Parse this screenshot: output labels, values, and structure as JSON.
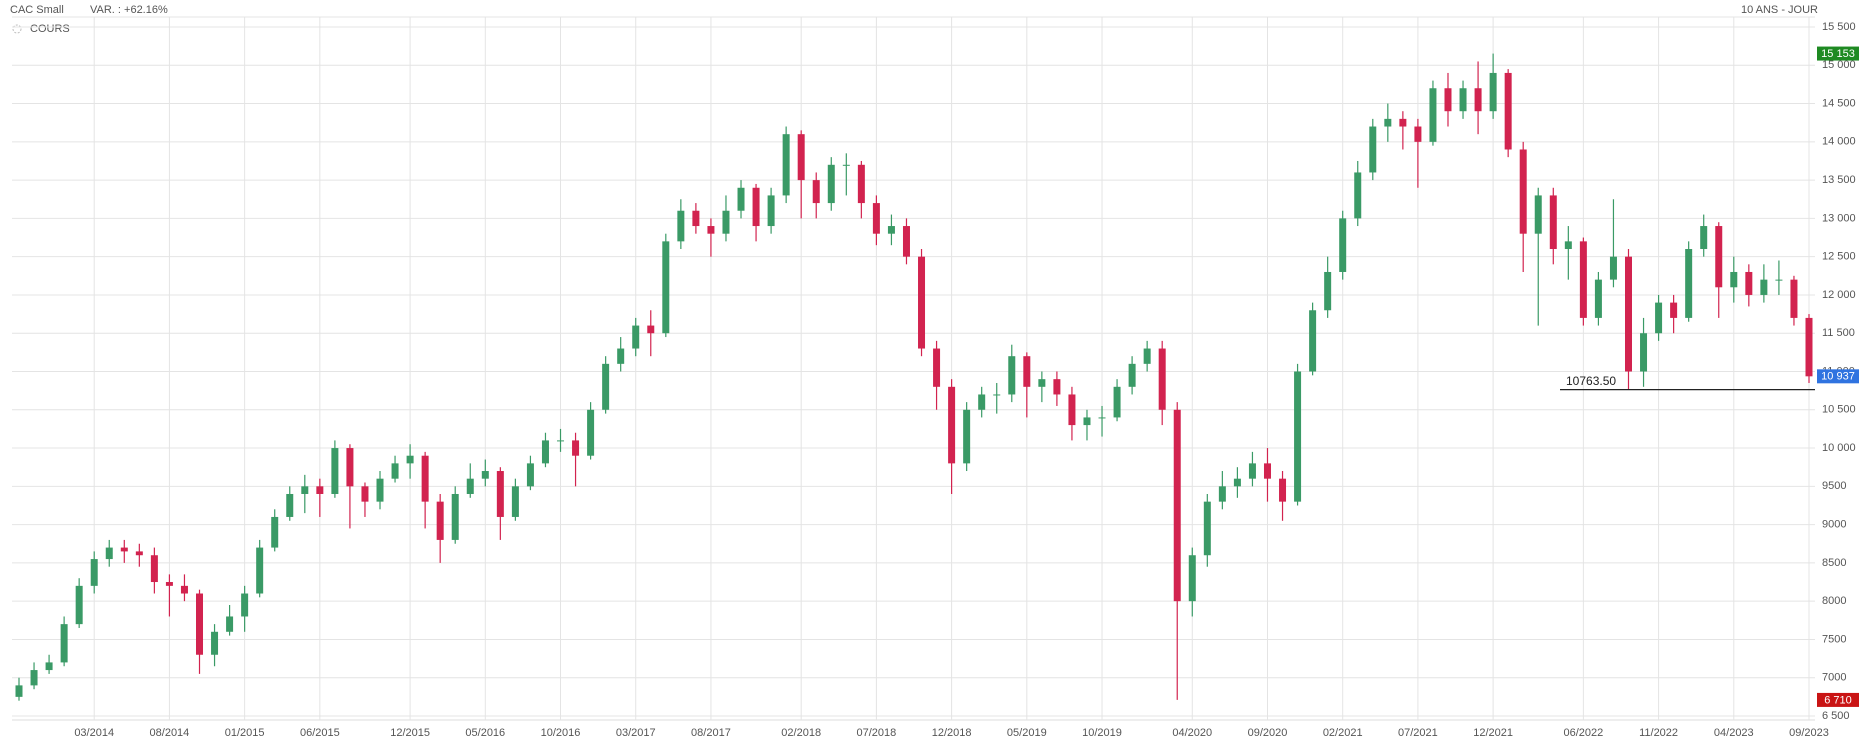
{
  "chart_data": {
    "type": "candlestick",
    "title": "CAC Small",
    "subtitle": "VAR. : +62.16%",
    "period": "10 ANS - JOUR",
    "legend": "COURS",
    "up_color": "#3a9a66",
    "down_color": "#d2234f",
    "grid": true,
    "ylim": [
      6500,
      15500
    ],
    "yticks": [
      {
        "value": 6500,
        "label": "6 500"
      },
      7000,
      7500,
      8000,
      8500,
      9000,
      9500,
      {
        "value": 10000,
        "label": "10 000"
      },
      {
        "value": 10500,
        "label": "10 500"
      },
      {
        "value": 11000,
        "label": "11 000"
      },
      {
        "value": 11500,
        "label": "11 500"
      },
      {
        "value": 12000,
        "label": "12 000"
      },
      {
        "value": 12500,
        "label": "12 500"
      },
      {
        "value": 13000,
        "label": "13 000"
      },
      {
        "value": 13500,
        "label": "13 500"
      },
      {
        "value": 14000,
        "label": "14 000"
      },
      {
        "value": 14500,
        "label": "14 500"
      },
      {
        "value": 15000,
        "label": "15 000"
      },
      {
        "value": 15500,
        "label": "15 500"
      }
    ],
    "yticks_fix": null,
    "categories": [
      null,
      null,
      null,
      null,
      null,
      "03/2014",
      null,
      null,
      null,
      null,
      "08/2014",
      null,
      null,
      null,
      null,
      "01/2015",
      null,
      null,
      null,
      null,
      "06/2015",
      null,
      null,
      null,
      null,
      null,
      "12/2015",
      null,
      null,
      null,
      null,
      "05/2016",
      null,
      null,
      null,
      null,
      "10/2016",
      null,
      null,
      null,
      null,
      "03/2017",
      null,
      null,
      null,
      null,
      "08/2017",
      null,
      null,
      null,
      null,
      null,
      "02/2018",
      null,
      null,
      null,
      null,
      "07/2018",
      null,
      null,
      null,
      null,
      "12/2018",
      null,
      null,
      null,
      null,
      "05/2019",
      null,
      null,
      null,
      null,
      "10/2019",
      null,
      null,
      null,
      null,
      null,
      "04/2020",
      null,
      null,
      null,
      null,
      "09/2020",
      null,
      null,
      null,
      null,
      "02/2021",
      null,
      null,
      null,
      null,
      "07/2021",
      null,
      null,
      null,
      null,
      "12/2021",
      null,
      null,
      null,
      null,
      null,
      "06/2022",
      null,
      null,
      null,
      null,
      "11/2022",
      null,
      null,
      null,
      null,
      "04/2023",
      null,
      null,
      null,
      null,
      "09/2023"
    ],
    "open": [
      6750,
      6900,
      7100,
      7200,
      7700,
      8200,
      8550,
      8700,
      8650,
      8600,
      8250,
      8200,
      8100,
      7300,
      7600,
      7800,
      8100,
      8700,
      9100,
      9400,
      9500,
      9400,
      10000,
      9500,
      9300,
      9600,
      9800,
      9900,
      9300,
      8800,
      9400,
      9600,
      9700,
      9100,
      9500,
      9800,
      10100,
      10100,
      9900,
      10500,
      11100,
      11300,
      11600,
      11500,
      12700,
      13100,
      12900,
      12800,
      13100,
      13400,
      12900,
      13300,
      14100,
      13500,
      13200,
      13700,
      13700,
      13200,
      12800,
      12900,
      12500,
      11300,
      10800,
      9800,
      10500,
      10700,
      10700,
      11200,
      10800,
      10900,
      10700,
      10300,
      10400,
      10400,
      10800,
      11100,
      11300,
      10500,
      8000,
      8600,
      9300,
      9500,
      9600,
      9800,
      9600,
      9300,
      11000,
      11800,
      12300,
      13000,
      13600,
      14200,
      14300,
      14200,
      14000,
      14700,
      14400,
      14700,
      14400,
      14900,
      13900,
      12800,
      13300,
      12600,
      12700,
      11700,
      12200,
      12500,
      11000,
      11500,
      11900,
      11700,
      12600,
      12900,
      12100,
      12300,
      12000,
      12200,
      12200,
      11700
    ],
    "high": [
      7000,
      7200,
      7300,
      7800,
      8300,
      8650,
      8800,
      8800,
      8750,
      8700,
      8350,
      8350,
      8150,
      7700,
      7950,
      8200,
      8800,
      9200,
      9500,
      9650,
      9600,
      10100,
      10050,
      9550,
      9700,
      9900,
      10050,
      9950,
      9400,
      9500,
      9800,
      9850,
      9750,
      9600,
      9900,
      10200,
      10250,
      10200,
      10600,
      11200,
      11450,
      11700,
      11800,
      12800,
      13250,
      13200,
      13000,
      13300,
      13500,
      13450,
      13400,
      14200,
      14150,
      13600,
      13800,
      13850,
      13750,
      13300,
      13050,
      13000,
      12600,
      11400,
      10900,
      10600,
      10800,
      10850,
      11350,
      11250,
      11000,
      11000,
      10800,
      10500,
      10550,
      10900,
      11200,
      11400,
      11400,
      10600,
      8700,
      9400,
      9700,
      9750,
      9950,
      10000,
      9700,
      11100,
      11900,
      12500,
      13100,
      13750,
      14300,
      14500,
      14400,
      14300,
      14800,
      14900,
      14800,
      15050,
      15153,
      14950,
      14000,
      13400,
      13400,
      12900,
      12750,
      12300,
      13250,
      12600,
      11700,
      12000,
      12000,
      12700,
      13050,
      12950,
      12500,
      12400,
      12400,
      12450,
      12250,
      11750
    ],
    "low": [
      6700,
      6850,
      7050,
      7150,
      7650,
      8100,
      8450,
      8500,
      8450,
      8100,
      7800,
      8000,
      7050,
      7150,
      7550,
      7600,
      8050,
      8650,
      9050,
      9150,
      9100,
      9350,
      8950,
      9100,
      9200,
      9550,
      9600,
      8950,
      8500,
      8750,
      9350,
      9500,
      8800,
      9050,
      9450,
      9750,
      9950,
      9500,
      9850,
      10450,
      11000,
      11200,
      11200,
      11450,
      12600,
      12800,
      12500,
      12700,
      13000,
      12700,
      12800,
      13200,
      13000,
      13000,
      13100,
      13300,
      13000,
      12650,
      12650,
      12400,
      11200,
      10500,
      9400,
      9700,
      10400,
      10450,
      10600,
      10400,
      10600,
      10550,
      10100,
      10100,
      10150,
      10350,
      10700,
      11000,
      10300,
      6710,
      7800,
      8450,
      9200,
      9350,
      9500,
      9300,
      9050,
      9250,
      10950,
      11700,
      12200,
      12900,
      13500,
      14000,
      13900,
      13400,
      13950,
      14200,
      14300,
      14100,
      14300,
      13800,
      12300,
      11600,
      12400,
      12200,
      11600,
      11600,
      12100,
      10763.5,
      10800,
      11400,
      11500,
      11650,
      12500,
      11700,
      11900,
      11850,
      11900,
      12000,
      11600,
      10850
    ],
    "close": [
      6900,
      7100,
      7200,
      7700,
      8200,
      8550,
      8700,
      8650,
      8600,
      8250,
      8200,
      8100,
      7300,
      7600,
      7800,
      8100,
      8700,
      9100,
      9400,
      9500,
      9400,
      10000,
      9500,
      9300,
      9600,
      9800,
      9900,
      9300,
      8800,
      9400,
      9600,
      9700,
      9100,
      9500,
      9800,
      10100,
      10100,
      9900,
      10500,
      11100,
      11300,
      11600,
      11500,
      12700,
      13100,
      12900,
      12800,
      13100,
      13400,
      12900,
      13300,
      14100,
      13500,
      13200,
      13700,
      13700,
      13200,
      12800,
      12900,
      12500,
      11300,
      10800,
      9800,
      10500,
      10700,
      10700,
      11200,
      10800,
      10900,
      10700,
      10300,
      10400,
      10400,
      10800,
      11100,
      11300,
      10500,
      8000,
      8600,
      9300,
      9500,
      9600,
      9800,
      9600,
      9300,
      11000,
      11800,
      12300,
      13000,
      13600,
      14200,
      14300,
      14200,
      14000,
      14700,
      14400,
      14700,
      14400,
      14900,
      13900,
      12800,
      13300,
      12600,
      12700,
      11700,
      12200,
      12500,
      11000,
      11500,
      11900,
      11700,
      12600,
      12900,
      12100,
      12300,
      12000,
      12200,
      12200,
      11700,
      10937
    ],
    "price_tags": [
      {
        "value": 15153,
        "label": "15 153",
        "color": "#1e8a22"
      },
      {
        "value": 10937,
        "label": "10 937",
        "color": "#2f73e0"
      },
      {
        "value": 6710,
        "label": "6 710",
        "color": "#c91414"
      }
    ],
    "annotation": {
      "value": 10763.5,
      "label": "10763.50"
    }
  }
}
